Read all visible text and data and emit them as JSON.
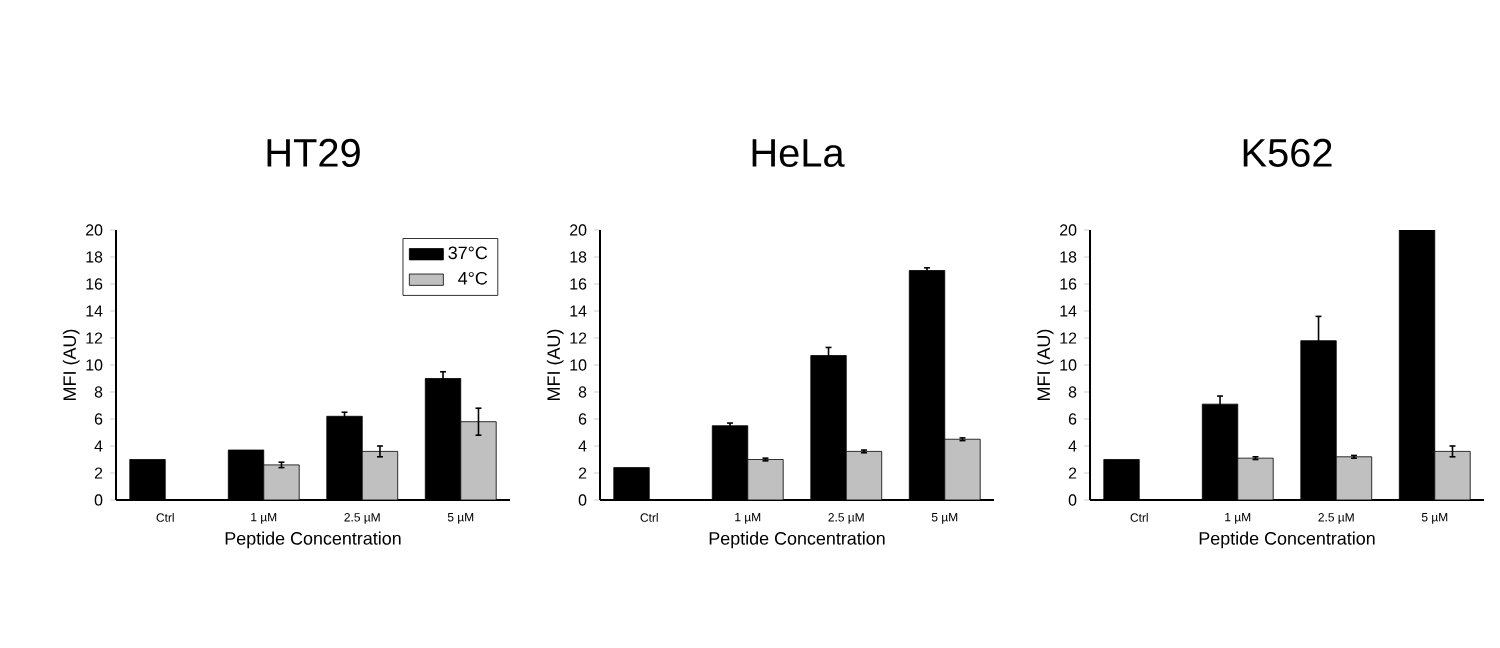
{
  "chart_data": [
    {
      "type": "bar",
      "title": "HT29",
      "xlabel": "Peptide Concentration",
      "ylabel": "MFI (AU)",
      "categories": [
        "Ctrl",
        "1 µM",
        "2.5 µM",
        "5 µM"
      ],
      "ylim": [
        0,
        20
      ],
      "yticks": [
        0,
        2,
        4,
        6,
        8,
        10,
        12,
        14,
        16,
        18,
        20
      ],
      "grid": false,
      "legend": "top right",
      "series": [
        {
          "name": "37°C",
          "color": "#000000",
          "values": [
            3.0,
            3.7,
            6.2,
            9.0
          ],
          "errors": [
            null,
            null,
            0.3,
            0.5
          ]
        },
        {
          "name": "4°C",
          "color": "#c0c0c0",
          "values": [
            null,
            2.6,
            3.6,
            5.8
          ],
          "errors": [
            null,
            0.2,
            0.4,
            1.0
          ]
        }
      ]
    },
    {
      "type": "bar",
      "title": "HeLa",
      "xlabel": "Peptide Concentration",
      "ylabel": "MFI (AU)",
      "categories": [
        "Ctrl",
        "1 µM",
        "2.5 µM",
        "5 µM"
      ],
      "ylim": [
        0,
        20
      ],
      "yticks": [
        0,
        2,
        4,
        6,
        8,
        10,
        12,
        14,
        16,
        18,
        20
      ],
      "grid": false,
      "series": [
        {
          "color": "#000000",
          "values": [
            2.4,
            5.5,
            10.7,
            17.0
          ],
          "errors": [
            null,
            0.2,
            0.6,
            0.2
          ]
        },
        {
          "color": "#c0c0c0",
          "values": [
            null,
            3.0,
            3.6,
            4.5
          ],
          "errors": [
            null,
            0.1,
            0.1,
            0.1
          ]
        }
      ]
    },
    {
      "type": "bar",
      "title": "K562",
      "xlabel": "Peptide Concentration",
      "ylabel": "MFI (AU)",
      "categories": [
        "Ctrl",
        "1 µM",
        "2.5 µM",
        "5 µM"
      ],
      "ylim": [
        0,
        20
      ],
      "yticks": [
        0,
        2,
        4,
        6,
        8,
        10,
        12,
        14,
        16,
        18,
        20
      ],
      "grid": false,
      "series": [
        {
          "color": "#000000",
          "values": [
            3.0,
            7.1,
            11.8,
            20.0
          ],
          "errors": [
            null,
            0.6,
            1.8,
            null
          ]
        },
        {
          "color": "#c0c0c0",
          "values": [
            null,
            3.1,
            3.2,
            3.6
          ],
          "errors": [
            null,
            0.1,
            0.1,
            0.4
          ]
        }
      ]
    }
  ]
}
